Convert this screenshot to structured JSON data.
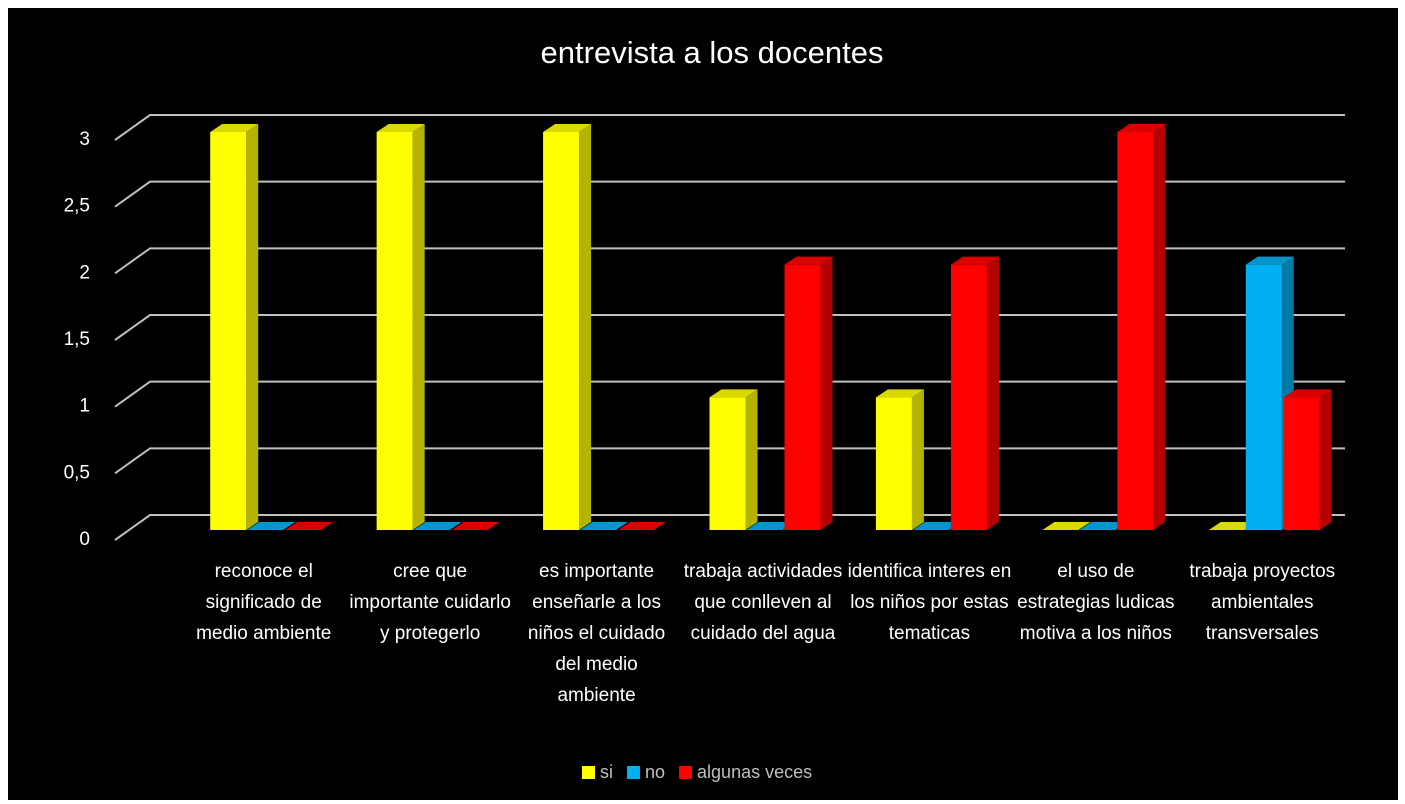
{
  "chart_data": {
    "type": "bar",
    "title": "entrevista a los  docentes",
    "categories": [
      "reconoce el significado de medio ambiente",
      "cree que importante cuidarlo y protegerlo",
      "es importante enseñarle a los niños el cuidado del medio ambiente",
      "trabaja actividades que conlleven al cuidado del agua",
      "identifica interes en los niños por estas tematicas",
      "el uso de estrategias ludicas motiva a los niños",
      "trabaja proyectos ambientales transversales"
    ],
    "series": [
      {
        "name": "si",
        "color": "#ffff00",
        "values": [
          3,
          3,
          3,
          1,
          1,
          0,
          0
        ]
      },
      {
        "name": "no",
        "color": "#00b0f0",
        "values": [
          0,
          0,
          0,
          0,
          0,
          0,
          2
        ]
      },
      {
        "name": "algunas veces",
        "color": "#ff0000",
        "values": [
          0,
          0,
          0,
          2,
          2,
          3,
          1
        ]
      }
    ],
    "ylim": [
      0,
      3
    ],
    "yticks": [
      0,
      {
        "value": 0.5,
        "label": "0,5"
      },
      1,
      {
        "value": 1.5,
        "label": "1,5"
      },
      2,
      {
        "value": 2.5,
        "label": "2,5"
      },
      3
    ],
    "grid": true,
    "legend": "bottom"
  }
}
